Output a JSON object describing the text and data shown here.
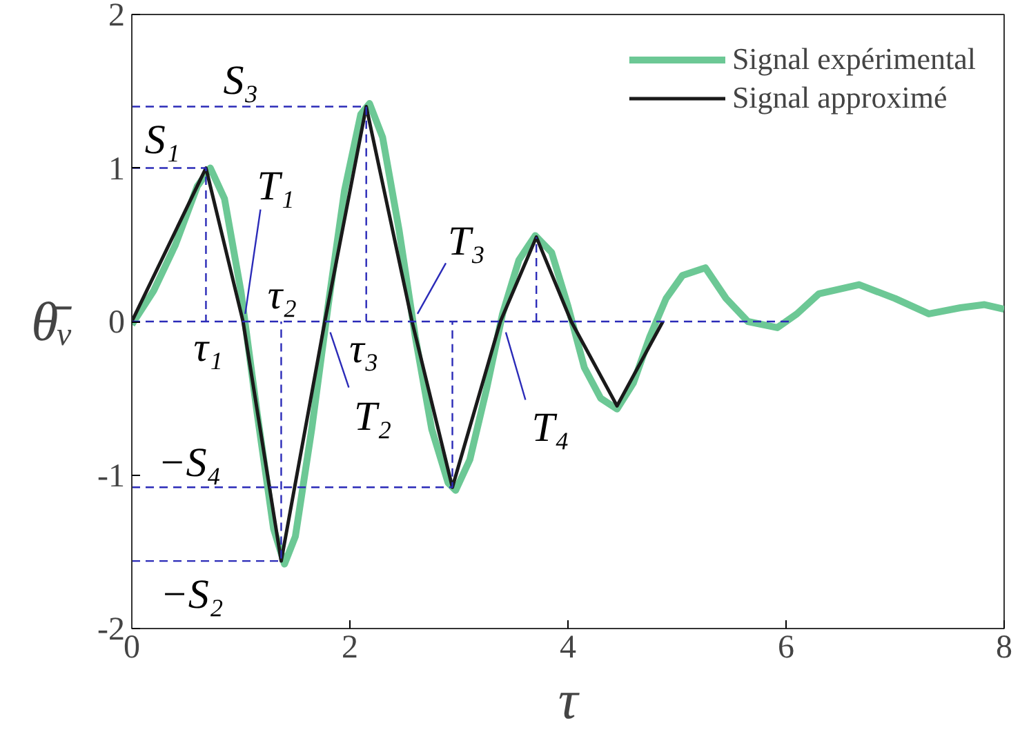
{
  "chart_data": {
    "type": "line",
    "xlabel": "τ",
    "ylabel": "θ̄ᵥ",
    "xlim": [
      0,
      8
    ],
    "ylim": [
      -2,
      2
    ],
    "xticks": [
      0,
      2,
      4,
      6,
      8
    ],
    "yticks": [
      -2,
      -1,
      0,
      1,
      2
    ],
    "grid": false,
    "legend": "top right",
    "marker": "none",
    "line_style": "solid",
    "series": [
      {
        "name": "Signal expérimental",
        "color": "#6cc895",
        "x": [
          0,
          0.2,
          0.4,
          0.6,
          0.72,
          0.85,
          1.0,
          1.15,
          1.3,
          1.4,
          1.5,
          1.65,
          1.8,
          1.95,
          2.1,
          2.18,
          2.3,
          2.45,
          2.6,
          2.75,
          2.9,
          2.97,
          3.1,
          3.25,
          3.4,
          3.55,
          3.7,
          3.85,
          4.0,
          4.15,
          4.3,
          4.45,
          4.6,
          4.75,
          4.9,
          5.05,
          5.26,
          5.45,
          5.65,
          5.92,
          6.1,
          6.3,
          6.67,
          7.0,
          7.31,
          7.6,
          7.82,
          8.0
        ],
        "values": [
          -0.02,
          0.2,
          0.5,
          0.88,
          1.0,
          0.8,
          0.2,
          -0.6,
          -1.35,
          -1.58,
          -1.4,
          -0.7,
          0.1,
          0.85,
          1.35,
          1.42,
          1.2,
          0.6,
          -0.1,
          -0.7,
          -1.05,
          -1.1,
          -0.9,
          -0.45,
          0.05,
          0.4,
          0.56,
          0.45,
          0.1,
          -0.3,
          -0.5,
          -0.57,
          -0.4,
          -0.1,
          0.15,
          0.3,
          0.35,
          0.15,
          0.0,
          -0.04,
          0.05,
          0.18,
          0.24,
          0.15,
          0.05,
          0.09,
          0.11,
          0.08
        ]
      },
      {
        "name": "Signal approximé",
        "color": "#1a1a1a",
        "x": [
          0,
          0.68,
          1.02,
          1.37,
          1.77,
          2.15,
          2.57,
          2.94,
          3.38,
          3.71,
          4.03,
          4.45,
          4.87
        ],
        "values": [
          0,
          1.0,
          0,
          -1.56,
          0,
          1.4,
          0,
          -1.08,
          0,
          0.55,
          0,
          -0.55,
          0
        ]
      },
      {
        "color": "#2b2bb8",
        "line_style": "dashed",
        "x": [
          0,
          0.68,
          0.68,
          null,
          0,
          2.15,
          2.15,
          null,
          0,
          1.37,
          1.37,
          null,
          0,
          2.94,
          2.94,
          null,
          0,
          6.03,
          null,
          3.71,
          3.71
        ],
        "values": [
          1.0,
          1.0,
          0,
          null,
          1.4,
          1.4,
          0,
          null,
          -1.56,
          -1.56,
          0,
          null,
          -1.08,
          -1.08,
          0,
          null,
          0,
          0,
          null,
          0,
          0.55
        ]
      },
      {
        "color": "#2b2bb8",
        "x": [
          1.04,
          1.18,
          null,
          1.82,
          1.99,
          null,
          2.62,
          2.88,
          null,
          3.43,
          3.61
        ],
        "values": [
          0.05,
          0.73,
          null,
          -0.07,
          -0.43,
          null,
          0.05,
          0.38,
          null,
          -0.07,
          -0.51
        ]
      }
    ],
    "annotations": [
      "S₃",
      "S₁",
      "T₁",
      "τ₂",
      "τ₁",
      "τ₃",
      "T₂",
      "T₃",
      "T₄",
      "−S₄",
      "−S₂"
    ]
  }
}
